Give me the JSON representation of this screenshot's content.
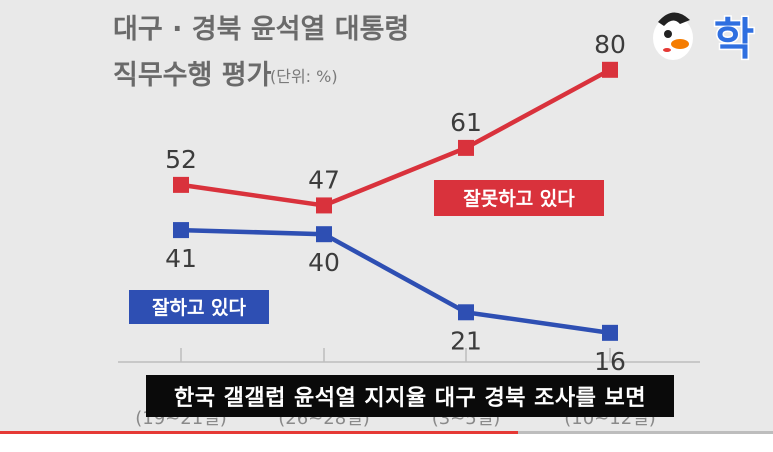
{
  "chart_data": {
    "type": "line",
    "title_line1": "대구 · 경북 윤석열 대통령",
    "title_line2": "직무수행 평가",
    "unit": "(단위: %)",
    "categories": [
      "(19~21일)",
      "(26~28일)",
      "(3~5일)",
      "(10~12일)"
    ],
    "series": [
      {
        "name": "잘못하고 있다",
        "values": [
          52,
          47,
          61,
          80
        ],
        "color": "#d9323c"
      },
      {
        "name": "잘하고 있다",
        "values": [
          41,
          40,
          21,
          16
        ],
        "color": "#2e4fb3"
      }
    ],
    "ylim": [
      0,
      100
    ]
  },
  "subtitle": "한국 갤갤럽 윤석열 지지율 대구 경북 조사를 보면",
  "logo_text": "학",
  "progress": 0.67
}
